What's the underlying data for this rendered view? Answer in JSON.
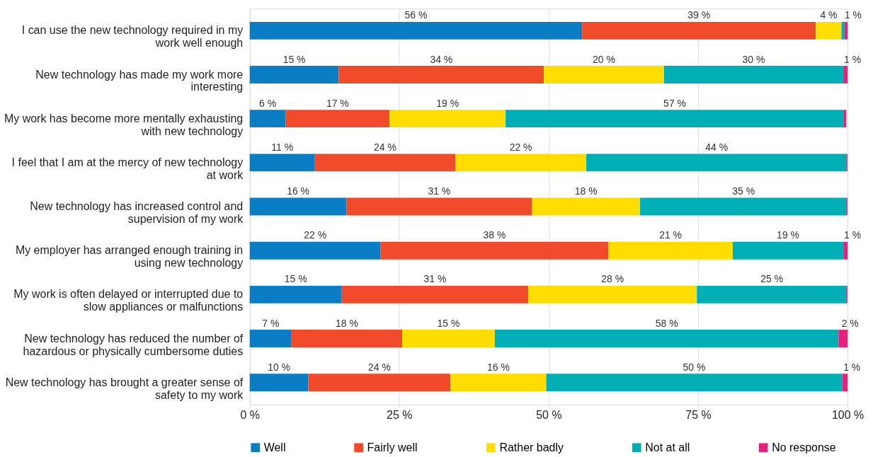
{
  "chart_data": {
    "type": "bar",
    "orientation": "horizontal",
    "stacked": true,
    "categories": [
      "I can use the new technology required in my work well enough",
      "New technology has made my work more interesting",
      "My work has become more mentally exhausting with new technology",
      "I feel that I am at the mercy of new technology at work",
      "New technology has increased control and supervision of my work",
      "My employer has arranged enough training in using new technology",
      "My work is often delayed or interrupted due to slow appliances or malfunctions",
      "New technology has reduced the number of hazardous or physically cumbersome duties",
      "New technology has brought a greater sense of safety to my work"
    ],
    "series": [
      {
        "name": "Well",
        "color": "#0a7dc5",
        "values": [
          55.6,
          14.9,
          6.0,
          10.9,
          16.2,
          21.9,
          15.4,
          7.0,
          9.8
        ],
        "value_labels": [
          "56 %",
          "15 %",
          "6 %",
          "11 %",
          "16 %",
          "22 %",
          "15 %",
          "7 %",
          "10 %"
        ]
      },
      {
        "name": "Fairly well",
        "color": "#f04a2a",
        "values": [
          39.1,
          34.3,
          17.4,
          23.5,
          31.0,
          38.1,
          31.2,
          18.5,
          23.8
        ],
        "value_labels": [
          "39 %",
          "34 %",
          "17 %",
          "24 %",
          "31 %",
          "38 %",
          "31 %",
          "18 %",
          "24 %"
        ]
      },
      {
        "name": "Rather badly",
        "color": "#ffdd00",
        "values": [
          4.3,
          20.1,
          19.4,
          21.9,
          18.1,
          20.8,
          28.2,
          15.5,
          16.0
        ],
        "value_labels": [
          "4 %",
          "20 %",
          "19 %",
          "22 %",
          "18 %",
          "21 %",
          "28 %",
          "15 %",
          "16 %"
        ]
      },
      {
        "name": "Not at all",
        "color": "#00afb5",
        "values": [
          0.5,
          30.0,
          56.6,
          43.6,
          34.6,
          18.5,
          25.1,
          57.5,
          49.5
        ],
        "value_labels": [
          null,
          "30 %",
          "57 %",
          "44 %",
          "35 %",
          "19 %",
          "25 %",
          "58 %",
          "50 %"
        ]
      },
      {
        "name": "No response",
        "color": "#e5227b",
        "values": [
          0.5,
          0.7,
          0.4,
          0.1,
          0.1,
          0.7,
          0.1,
          1.5,
          0.9
        ],
        "value_labels": [
          "1 %",
          "1 %",
          null,
          null,
          null,
          "1 %",
          null,
          "2 %",
          "1 %"
        ]
      }
    ],
    "xlim": [
      0,
      100
    ],
    "xticks": [
      {
        "value": 0,
        "label": "0 %"
      },
      {
        "value": 25,
        "label": "25 %"
      },
      {
        "value": 50,
        "label": "50 %"
      },
      {
        "value": 75,
        "label": "75 %"
      },
      {
        "value": 100,
        "label": "100 %"
      }
    ],
    "grid": "x",
    "legend": "bottom"
  }
}
